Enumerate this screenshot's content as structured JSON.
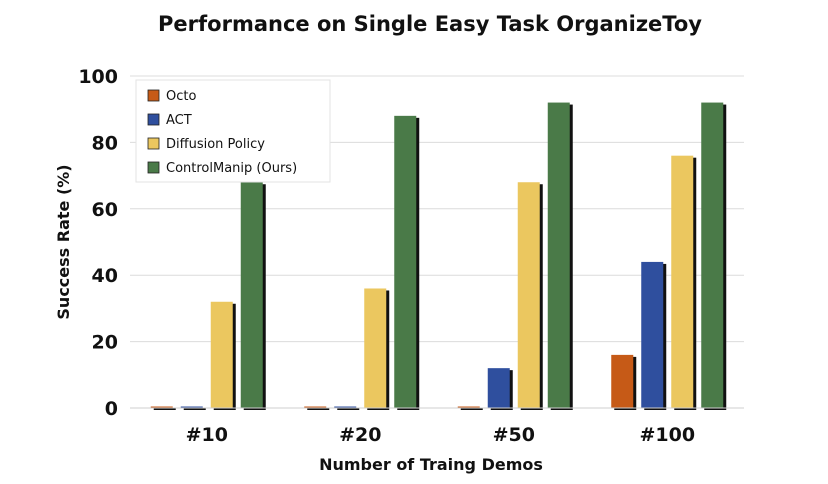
{
  "chart_data": {
    "type": "bar",
    "title": "Performance on Single Easy Task OrganizeToy",
    "xlabel": "Number of Traing Demos",
    "ylabel": "Success Rate (%)",
    "categories": [
      "#10",
      "#20",
      "#50",
      "#100"
    ],
    "ylim": [
      0,
      100
    ],
    "yticks": [
      0,
      20,
      40,
      60,
      80,
      100
    ],
    "grid": true,
    "legend_position": "top-left",
    "series": [
      {
        "name": "Octo",
        "color": "#c65a17",
        "values": [
          0,
          0,
          0,
          16
        ]
      },
      {
        "name": "ACT",
        "color": "#2f4f9e",
        "values": [
          0,
          0,
          12,
          44
        ]
      },
      {
        "name": "Diffusion Policy",
        "color": "#ebc75f",
        "values": [
          32,
          36,
          68,
          76
        ]
      },
      {
        "name": "ControlManip (Ours)",
        "color": "#4a7a48",
        "values": [
          68,
          88,
          92,
          92
        ]
      }
    ]
  }
}
